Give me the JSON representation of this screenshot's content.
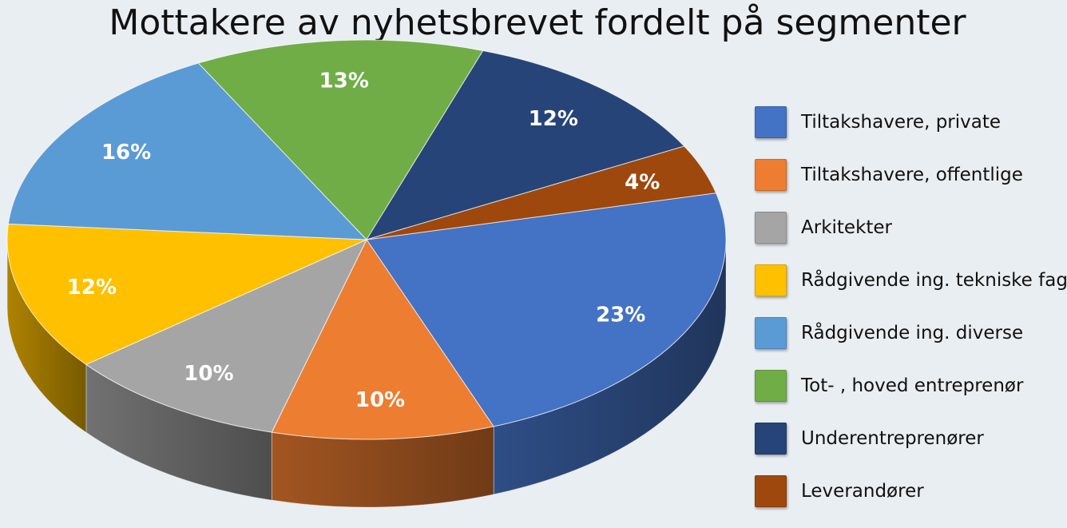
{
  "chart_data": {
    "type": "pie",
    "title": "Mottakere av nyhetsbrevet fordelt på segmenter",
    "legend_position": "right",
    "slices": [
      {
        "name": "Tiltakshavere, private",
        "value": 23,
        "label": "23%",
        "color": "#4472c4"
      },
      {
        "name": "Tiltakshavere, offentlige",
        "value": 10,
        "label": "10%",
        "color": "#ed7d31"
      },
      {
        "name": "Arkitekter",
        "value": 10,
        "label": "10%",
        "color": "#a5a5a5"
      },
      {
        "name": "Rådgivende ing. tekniske fag",
        "value": 12,
        "label": "12%",
        "color": "#ffc000"
      },
      {
        "name": "Rådgivende ing. diverse",
        "value": 16,
        "label": "16%",
        "color": "#5b9bd5"
      },
      {
        "name": "Tot- , hoved entreprenør",
        "value": 13,
        "label": "13%",
        "color": "#70ad47"
      },
      {
        "name": "Underentreprenører",
        "value": 12,
        "label": "12%",
        "color": "#264478"
      },
      {
        "name": "Leverandører",
        "value": 4,
        "label": "4%",
        "color": "#9e480e"
      }
    ]
  }
}
